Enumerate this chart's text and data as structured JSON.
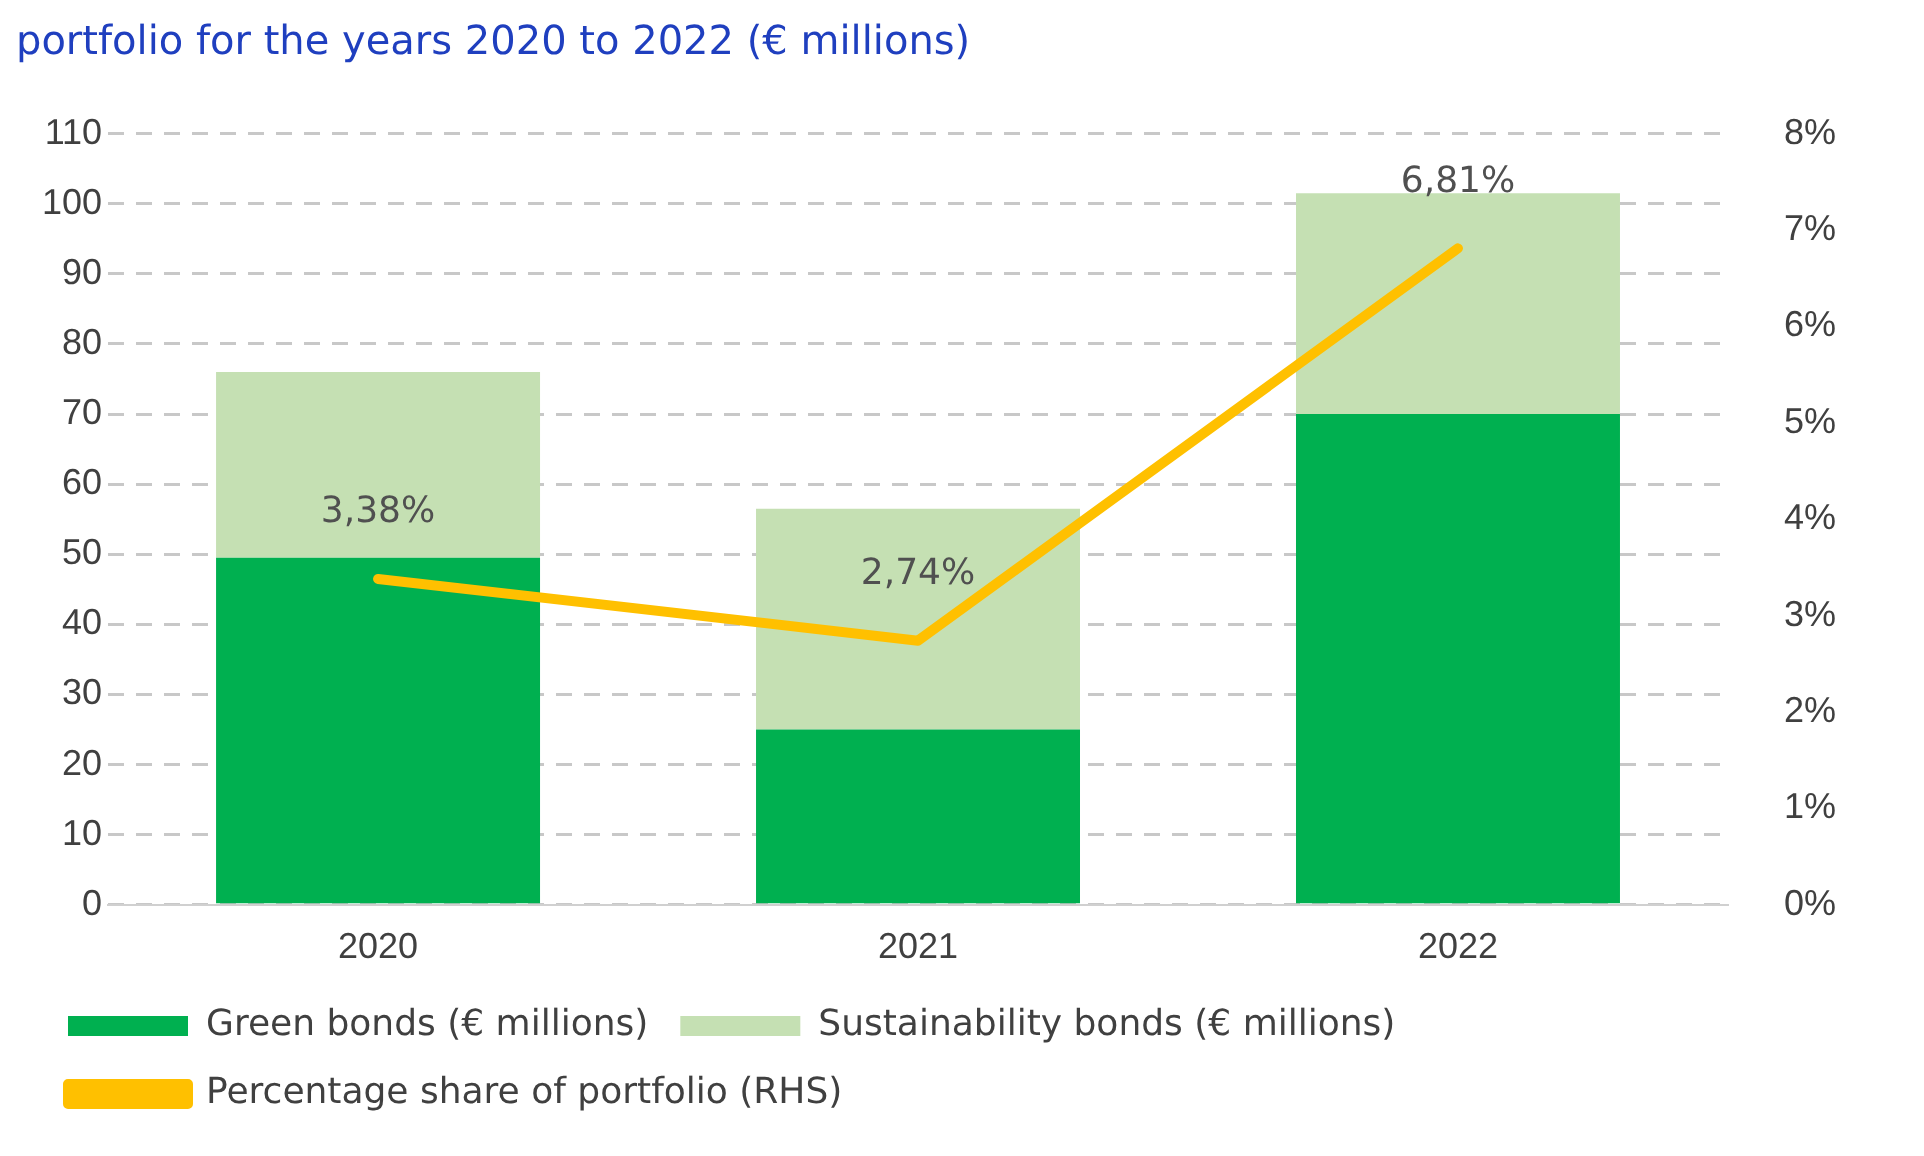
{
  "chart_data": {
    "type": "bar",
    "title": "portfolio for the years 2020 to 2022 (€ millions)",
    "categories": [
      "2020",
      "2021",
      "2022"
    ],
    "series": [
      {
        "name": "Green bonds (€ millions)",
        "color": "#00b050",
        "values": [
          49.5,
          25,
          70
        ]
      },
      {
        "name": "Sustainability bonds (€ millions)",
        "color": "#c5e0b3",
        "values": [
          26.5,
          31.5,
          31.5
        ]
      },
      {
        "type": "line",
        "name": "Percentage share of portfolio (RHS)",
        "color": "#ffc000",
        "axis": "y2",
        "values": [
          3.38,
          2.74,
          6.81
        ],
        "value_labels": [
          "3,38%",
          "2,74%",
          "6,81%"
        ]
      }
    ],
    "stacked": true,
    "ylim": [
      0,
      110
    ],
    "yticks": [
      0,
      10,
      20,
      30,
      40,
      50,
      60,
      70,
      80,
      90,
      100,
      110
    ],
    "y2lim": [
      0,
      8
    ],
    "y2ticks": [
      {
        "value": 0,
        "label": "0%"
      },
      {
        "value": 1,
        "label": "1%"
      },
      {
        "value": 2,
        "label": "2%"
      },
      {
        "value": 3,
        "label": "3%"
      },
      {
        "value": 4,
        "label": "4%"
      },
      {
        "value": 5,
        "label": "5%"
      },
      {
        "value": 6,
        "label": "6%"
      },
      {
        "value": 7,
        "label": "7%"
      },
      {
        "value": 8,
        "label": "8%"
      }
    ],
    "grid": "y",
    "legend": "bottom",
    "marker": "none"
  }
}
